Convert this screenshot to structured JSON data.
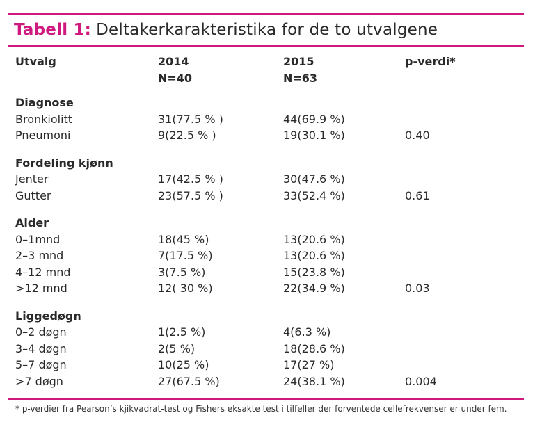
{
  "title": {
    "prefix": "Tabell 1:",
    "text": "Deltakerkarakteristika for de to utvalgene"
  },
  "header": {
    "col0": "Utvalg",
    "col1_line1": "2014",
    "col1_line2": "N=40",
    "col2_line1": "2015",
    "col2_line2": "N=63",
    "col3": "p-verdi*"
  },
  "groups": [
    {
      "label": "Diagnose",
      "rows": [
        {
          "label": "Bronkiolitt",
          "v2014": "31(77.5 % )",
          "v2015": "44(69.9 %)",
          "p": ""
        },
        {
          "label": "Pneumoni",
          "v2014": "9(22.5 % )",
          "v2015": "19(30.1 %)",
          "p": "0.40"
        }
      ]
    },
    {
      "label": "Fordeling kjønn",
      "rows": [
        {
          "label": "Jenter",
          "v2014": "17(42.5 % )",
          "v2015": "30(47.6 %)",
          "p": ""
        },
        {
          "label": "Gutter",
          "v2014": "23(57.5 % )",
          "v2015": "33(52.4 %)",
          "p": "0.61"
        }
      ]
    },
    {
      "label": "Alder",
      "rows": [
        {
          "label": "0–1mnd",
          "v2014": "18(45 %)",
          "v2015": "13(20.6 %)",
          "p": ""
        },
        {
          "label": "2–3 mnd",
          "v2014": "7(17.5 %)",
          "v2015": "13(20.6 %)",
          "p": ""
        },
        {
          "label": "4–12 mnd",
          "v2014": "3(7.5 %)",
          "v2015": "15(23.8 %)",
          "p": ""
        },
        {
          "label": ">12 mnd",
          "v2014": "12( 30 %)",
          "v2015": "22(34.9 %)",
          "p": "0.03"
        }
      ]
    },
    {
      "label": "Liggedøgn",
      "rows": [
        {
          "label": "0–2 døgn",
          "v2014": "1(2.5 %)",
          "v2015": "4(6.3 %)",
          "p": ""
        },
        {
          "label": "3–4 døgn",
          "v2014": "2(5 %)",
          "v2015": "18(28.6 %)",
          "p": ""
        },
        {
          "label": "5–7 døgn",
          "v2014": "10(25 %)",
          "v2015": "17(27 %)",
          "p": ""
        },
        {
          "label": ">7 døgn",
          "v2014": "27(67.5 %)",
          "v2015": "24(38.1 %)",
          "p": "0.004"
        }
      ]
    }
  ],
  "footnote": "* p-verdier fra Pearson’s kjikvadrat-test og Fishers eksakte test i tilfeller der forventede cellefrekvenser er under fem.",
  "colors": {
    "accent": "#d0197f",
    "text": "#2a2a2a"
  }
}
